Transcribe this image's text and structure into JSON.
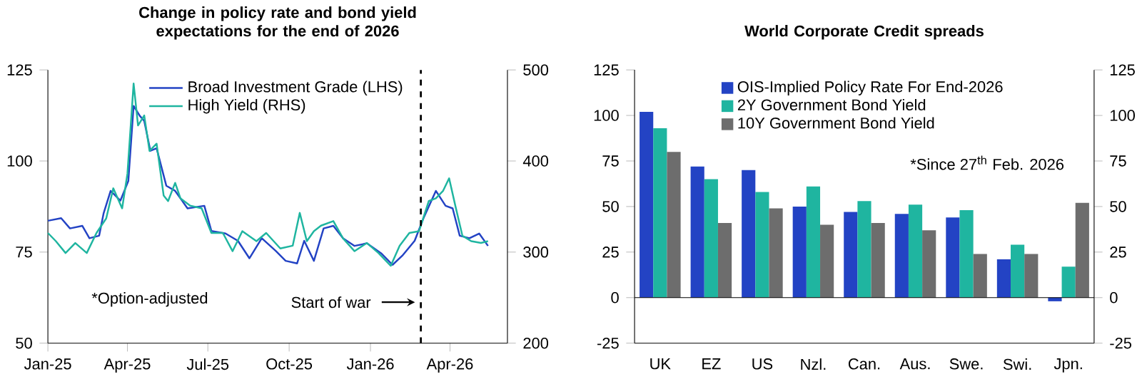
{
  "chart_data": [
    {
      "type": "line",
      "title": "Change in policy rate and bond yield expectations for the end of 2026",
      "xlim": [
        "2025-01-01",
        "2026-06-05"
      ],
      "xticks": [
        {
          "value": "2025-01-01",
          "label": "Jan-25"
        },
        {
          "value": "2025-04-01",
          "label": "Apr-25"
        },
        {
          "value": "2025-07-01",
          "label": "Jul-25"
        },
        {
          "value": "2025-10-01",
          "label": "Oct-25"
        },
        {
          "value": "2026-01-01",
          "label": "Jan-26"
        },
        {
          "value": "2026-04-01",
          "label": "Apr-26"
        }
      ],
      "ylim": [
        50,
        125
      ],
      "yticks": [
        50,
        75,
        100,
        125
      ],
      "y2lim": [
        200,
        500
      ],
      "y2ticks": [
        200,
        300,
        400,
        500
      ],
      "legend": "top",
      "grid": false,
      "marker": "none",
      "line_style": "solid",
      "series": [
        {
          "name": "Broad Investment Grade (LHS)",
          "color": "#2343c4",
          "x": [
            "2025-01-01",
            "2025-01-16",
            "2025-01-26",
            "2025-02-09",
            "2025-02-17",
            "2025-02-28",
            "2025-03-05",
            "2025-03-13",
            "2025-03-24",
            "2025-04-02",
            "2025-04-08",
            "2025-04-15",
            "2025-04-20",
            "2025-04-27",
            "2025-05-04",
            "2025-05-15",
            "2025-05-25",
            "2025-06-08",
            "2025-06-27",
            "2025-07-05",
            "2025-07-21",
            "2025-08-04",
            "2025-08-17",
            "2025-08-31",
            "2025-09-16",
            "2025-09-27",
            "2025-10-10",
            "2025-10-18",
            "2025-10-29",
            "2025-11-09",
            "2025-11-20",
            "2025-12-01",
            "2025-12-14",
            "2025-12-28",
            "2026-01-13",
            "2026-01-26",
            "2026-02-06",
            "2026-02-20",
            "2026-03-02",
            "2026-03-16",
            "2026-03-27",
            "2026-04-04",
            "2026-04-12",
            "2026-04-23",
            "2026-05-04",
            "2026-05-14"
          ],
          "values": [
            83.6,
            84.3,
            81.5,
            82.2,
            78.8,
            79.5,
            85.6,
            91.8,
            89.1,
            94.5,
            115.1,
            112.4,
            111.0,
            102.8,
            103.5,
            93.2,
            91.8,
            87.0,
            87.7,
            80.8,
            80.1,
            78.1,
            73.3,
            78.8,
            75.3,
            72.6,
            71.9,
            78.1,
            72.6,
            81.5,
            82.2,
            78.8,
            76.7,
            77.4,
            74.7,
            71.5,
            74.0,
            78.1,
            84.3,
            91.8,
            87.7,
            87.0,
            79.5,
            78.8,
            80.1,
            76.7
          ]
        },
        {
          "name": "High Yield (RHS)",
          "color": "#1fb5a0",
          "axis": "y2",
          "x": [
            "2025-01-01",
            "2025-01-10",
            "2025-01-21",
            "2025-02-01",
            "2025-02-14",
            "2025-02-25",
            "2025-03-08",
            "2025-03-16",
            "2025-03-26",
            "2025-04-01",
            "2025-04-08",
            "2025-04-13",
            "2025-04-20",
            "2025-04-26",
            "2025-05-04",
            "2025-05-12",
            "2025-05-17",
            "2025-05-25",
            "2025-05-31",
            "2025-06-11",
            "2025-06-24",
            "2025-07-05",
            "2025-07-18",
            "2025-07-29",
            "2025-08-09",
            "2025-08-25",
            "2025-09-05",
            "2025-09-21",
            "2025-10-05",
            "2025-10-13",
            "2025-10-21",
            "2025-10-29",
            "2025-11-06",
            "2025-11-20",
            "2025-12-01",
            "2025-12-14",
            "2025-12-28",
            "2026-01-10",
            "2026-01-24",
            "2026-02-03",
            "2026-02-14",
            "2026-02-25",
            "2026-03-08",
            "2026-03-16",
            "2026-03-24",
            "2026-03-31",
            "2026-04-07",
            "2026-04-15",
            "2026-04-25",
            "2026-05-06",
            "2026-05-14"
          ],
          "values": [
            321,
            312,
            299,
            310,
            299,
            321,
            337,
            370,
            348,
            386,
            485,
            439,
            450,
            411,
            419,
            362,
            356,
            376,
            359,
            351,
            348,
            321,
            321,
            301,
            323,
            312,
            321,
            304,
            307,
            343,
            312,
            323,
            329,
            334,
            315,
            301,
            310,
            299,
            285,
            307,
            321,
            323,
            356,
            359,
            367,
            381,
            351,
            318,
            312,
            310,
            312
          ]
        }
      ],
      "ref_lines": [
        {
          "axis": "x",
          "value": "2026-02-27",
          "label": "Start of war",
          "color": "#000000",
          "line_style": "dashed"
        }
      ],
      "annotations": [
        "*Option-adjusted"
      ]
    },
    {
      "type": "bar",
      "title": "World Corporate Credit spreads",
      "categories": [
        "UK",
        "EZ",
        "US",
        "Nzl.",
        "Can.",
        "Aus.",
        "Swe.",
        "Swi.",
        "Jpn."
      ],
      "ylim": [
        -25,
        125
      ],
      "yticks": [
        -25,
        0,
        25,
        50,
        75,
        100,
        125
      ],
      "y2lim": [
        -25,
        125
      ],
      "y2ticks": [
        -25,
        0,
        25,
        50,
        75,
        100,
        125
      ],
      "legend": "top",
      "series": [
        {
          "name": "OIS-Implied Policy Rate For End-2026",
          "color": "#2343c4",
          "values": [
            102,
            72,
            70,
            50,
            47,
            46,
            44,
            21,
            -2
          ]
        },
        {
          "name": "2Y Government Bond Yield",
          "color": "#1fb5a0",
          "values": [
            93,
            65,
            58,
            61,
            53,
            51,
            48,
            29,
            17
          ]
        },
        {
          "name": "10Y Government Bond Yield",
          "color": "#6d6d6d",
          "values": [
            80,
            41,
            49,
            40,
            41,
            37,
            24,
            24,
            52
          ]
        }
      ],
      "annotations": [
        "*Since 27$^{th}$ Feb. 2026"
      ]
    }
  ]
}
